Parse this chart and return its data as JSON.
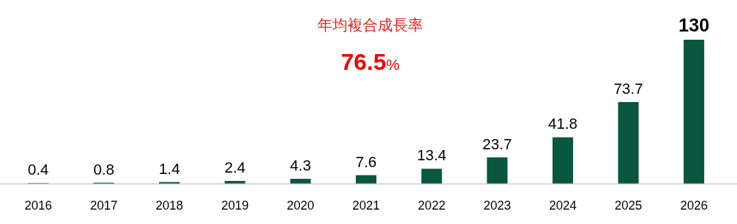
{
  "chart_data": {
    "type": "bar",
    "title": "年均複合成長率",
    "annotations": [
      "76.5%"
    ],
    "categories": [
      "2016",
      "2017",
      "2018",
      "2019",
      "2020",
      "2021",
      "2022",
      "2023",
      "2024",
      "2025",
      "2026"
    ],
    "values": [
      0.4,
      0.8,
      1.4,
      2.4,
      4.3,
      7.6,
      13.4,
      23.7,
      41.8,
      73.7,
      130
    ],
    "color": "#0a5640",
    "data_labels": true
  }
}
